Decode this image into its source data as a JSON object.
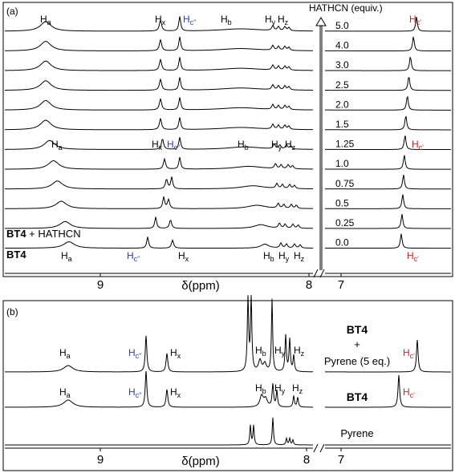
{
  "chart_data": [
    {
      "type": "line",
      "panel_label": "(a)",
      "xlabel": "δ(ppm)",
      "x_ticks": [
        "9",
        "8",
        "7"
      ],
      "x_axis_break": true,
      "x_reversed": true,
      "title_arrow": "HATHCN (equiv.)",
      "series_stack_labels": [
        "5.0",
        "4.0",
        "3.0",
        "2.5",
        "2.0",
        "1.5",
        "1.25",
        "1.0",
        "0.75",
        "0.5",
        "0.25",
        "0.0"
      ],
      "row_names": [
        "",
        "",
        "",
        "",
        "",
        "",
        "",
        "",
        "",
        "",
        "BT4 + HATHCN",
        "BT4"
      ],
      "peaks_top_labels": [
        "Ha",
        "Hx",
        "Hc''",
        "Hb",
        "Hy",
        "Hz",
        "Hc'"
      ],
      "peaks_mid_labels": [
        "Ha",
        "Hx",
        "Hc''",
        "Hb",
        "Hy",
        "Hz",
        "Hc'"
      ],
      "peaks_bottom_labels": [
        "Ha",
        "Hc''",
        "Hx",
        "Hb",
        "Hy",
        "Hz",
        "Hc'"
      ],
      "peak_positions_ppm": {
        "Ha_5.0": 9.33,
        "Ha_0.0": 9.26,
        "Hx_5.0": 8.9,
        "Hx_0.0": 8.88,
        "Hc2_5.0": 8.84,
        "Hc2_0.0": 8.92,
        "Hc1_5.0": 6.95,
        "Hc1_0.0": 6.98
      }
    },
    {
      "type": "line",
      "panel_label": "(b)",
      "xlabel": "δ(ppm)",
      "x_ticks": [
        "9",
        "8",
        "7"
      ],
      "x_axis_break": true,
      "series": [
        {
          "name_line1": "BT4",
          "name_line2": "+",
          "name_line3": "Pyrene (5 eq.)"
        },
        {
          "name_line1": "BT4"
        },
        {
          "name_line1": "Pyrene"
        }
      ],
      "peaks_labels": [
        "Ha",
        "Hc''",
        "Hx",
        "Hb",
        "Hy",
        "Hz",
        "Hc'"
      ]
    }
  ]
}
